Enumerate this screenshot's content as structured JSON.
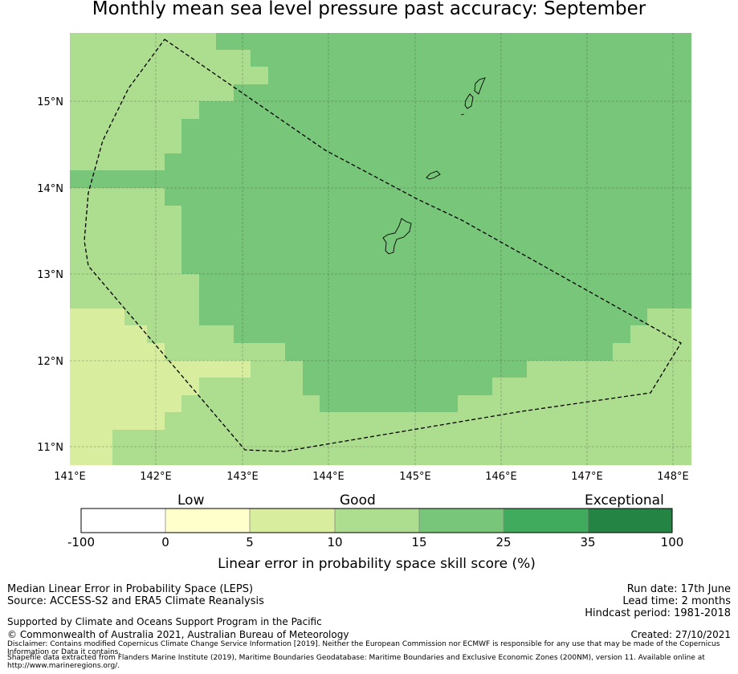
{
  "title": "Monthly mean sea level pressure past accuracy: September",
  "map": {
    "lon_labels": [
      "141°E",
      "142°E",
      "143°E",
      "144°E",
      "145°E",
      "146°E",
      "147°E",
      "148°E"
    ],
    "lat_labels": [
      "15°N",
      "14°N",
      "13°N",
      "12°N",
      "11°N"
    ],
    "lon_range": [
      141.0,
      148.2
    ],
    "lat_range": [
      10.8,
      15.8
    ],
    "gridlines": true,
    "colors": {
      "band_5_10": "#d9ed9f",
      "band_10_15": "#addd8e",
      "band_15_25": "#78c679",
      "band_25_35": "#41ab5d",
      "band_35_100": "#238443",
      "band_0_5": "#ffffcc",
      "band_neg": "#ffffff"
    },
    "region_outline": "Maritime boundary (EEZ) outline, dashed"
  },
  "colorbar": {
    "categories": [
      "Low",
      "Good",
      "Exceptional"
    ],
    "ticks": [
      "-100",
      "0",
      "5",
      "10",
      "15",
      "25",
      "35",
      "100"
    ],
    "colors": [
      "#ffffff",
      "#ffffcc",
      "#d9ed9f",
      "#addd8e",
      "#78c679",
      "#41ab5d",
      "#238443"
    ],
    "label": "Linear error in probability space skill score (%)"
  },
  "footer": {
    "line1": "Median Linear Error in Probability Space (LEPS)",
    "line2": "Source: ACCESS-S2 and ERA5 Climate Reanalysis",
    "line3": "Supported by Climate and Oceans Support Program in the Pacific",
    "line4": "© Commonwealth of Australia 2021, Australian Bureau of Meteorology",
    "run_date": "Run date: 17th June",
    "lead_time": "Lead time: 2 months",
    "hindcast": "Hindcast period: 1981-2018",
    "created": "Created: 27/10/2021",
    "disclaimer": "Disclaimer: Contains modified Copernicus Climate Change Service Information [2019]. Neither the European Commission nor ECMWF is responsible for any use that may be made of the Copernicus Information or Data it contains.",
    "shapefile": "Shapefile data extracted from Flanders Marine Institute (2019), Maritime Boundaries Geodatabase: Maritime Boundaries and Exclusive Economic Zones (200NM), version 11. Available online at http://www.marineregions.org/."
  }
}
